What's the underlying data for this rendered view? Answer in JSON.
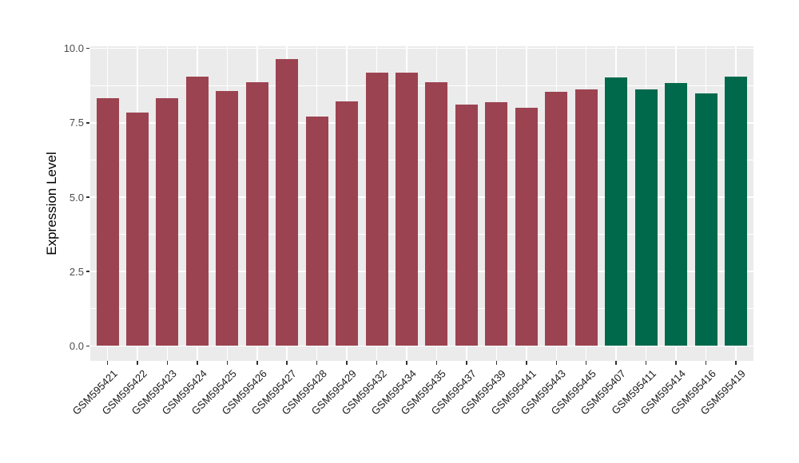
{
  "chart_data": {
    "type": "bar",
    "title": "",
    "xlabel": "",
    "ylabel": "Expression Level",
    "ylim": [
      0,
      10.07
    ],
    "grid": true,
    "legend_position": "none",
    "panel_background": "#EBEBEB",
    "grid_color": "#FFFFFF",
    "axis_text_color": "#4D4D4D",
    "x_axis_text_color": "#1A1A1A",
    "yticks": [
      0,
      2.5,
      5,
      7.5,
      10
    ],
    "ytick_labels": [
      "0.0",
      "2.5",
      "5.0",
      "7.5",
      "10.0"
    ],
    "minor_gridlines": [
      1.25,
      3.75,
      6.25,
      8.75
    ],
    "categories": [
      "GSM595421",
      "GSM595422",
      "GSM595423",
      "GSM595424",
      "GSM595425",
      "GSM595426",
      "GSM595427",
      "GSM595428",
      "GSM595429",
      "GSM595432",
      "GSM595434",
      "GSM595435",
      "GSM595437",
      "GSM595439",
      "GSM595441",
      "GSM595443",
      "GSM595445",
      "GSM595407",
      "GSM595411",
      "GSM595414",
      "GSM595416",
      "GSM595419"
    ],
    "values": [
      8.34,
      7.85,
      8.34,
      9.04,
      8.56,
      8.86,
      9.63,
      7.7,
      8.22,
      9.2,
      9.2,
      8.86,
      8.11,
      8.19,
      8.0,
      8.53,
      8.61,
      9.02,
      8.63,
      8.85,
      8.5,
      9.05
    ],
    "bar_groups": [
      "maroon",
      "maroon",
      "maroon",
      "maroon",
      "maroon",
      "maroon",
      "maroon",
      "maroon",
      "maroon",
      "maroon",
      "maroon",
      "maroon",
      "maroon",
      "maroon",
      "maroon",
      "maroon",
      "maroon",
      "green",
      "green",
      "green",
      "green",
      "green"
    ],
    "group_colors": {
      "maroon": "#9C4351",
      "green": "#00694C"
    }
  }
}
